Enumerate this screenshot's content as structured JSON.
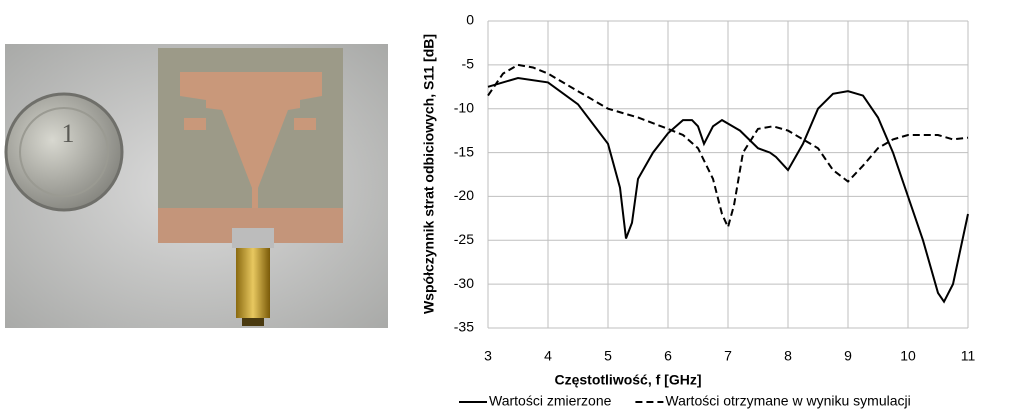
{
  "chart_data": {
    "type": "line",
    "xlabel": "Częstotliwość, f [GHz]",
    "ylabel": "Współczynnik strat odbiciowych, S11 [dB]",
    "xlim": [
      3,
      11
    ],
    "xticks": [
      3,
      4,
      5,
      6,
      7,
      8,
      9,
      10,
      11
    ],
    "ylim": [
      -35,
      0
    ],
    "yticks": [
      0,
      -5,
      -10,
      -15,
      -20,
      -25,
      -30,
      -35
    ],
    "grid": true,
    "legend": "bottom",
    "series": [
      {
        "name": "Wartości zmierzone",
        "color": "#000000",
        "dash": "solid",
        "x": [
          3,
          3.5,
          4,
          4.5,
          5,
          5.2,
          5.3,
          5.4,
          5.5,
          5.75,
          6,
          6.25,
          6.4,
          6.5,
          6.6,
          6.75,
          6.9,
          7.2,
          7.5,
          7.7,
          7.8,
          8,
          8.25,
          8.5,
          8.75,
          9,
          9.25,
          9.5,
          9.75,
          10,
          10.25,
          10.5,
          10.6,
          10.75,
          11
        ],
        "values": [
          -7.5,
          -6.5,
          -7,
          -9.5,
          -14,
          -19,
          -24.8,
          -23,
          -18,
          -15,
          -12.8,
          -11.3,
          -11.3,
          -12,
          -14,
          -12,
          -11.3,
          -12.5,
          -14.5,
          -15,
          -15.5,
          -17,
          -14,
          -10,
          -8.3,
          -8,
          -8.5,
          -11,
          -15,
          -20,
          -25,
          -31,
          -32,
          -30,
          -22
        ]
      },
      {
        "name": "Wartości otrzymane w wyniku symulacji",
        "color": "#000000",
        "dash": "dashed",
        "x": [
          3,
          3.25,
          3.5,
          3.75,
          4,
          4.5,
          5,
          5.5,
          6,
          6.25,
          6.5,
          6.75,
          6.9,
          7,
          7.1,
          7.25,
          7.5,
          7.75,
          8,
          8.5,
          8.75,
          9,
          9.25,
          9.5,
          9.75,
          10,
          10.5,
          10.75,
          11
        ],
        "values": [
          -8.5,
          -6,
          -5,
          -5.3,
          -6,
          -8,
          -10,
          -11,
          -12.3,
          -13,
          -14.5,
          -18,
          -22,
          -23.5,
          -21,
          -15,
          -12.3,
          -12,
          -12.5,
          -14.5,
          -17,
          -18.3,
          -16.5,
          -14.5,
          -13.5,
          -13,
          -13,
          -13.5,
          -13.3
        ]
      }
    ]
  }
}
